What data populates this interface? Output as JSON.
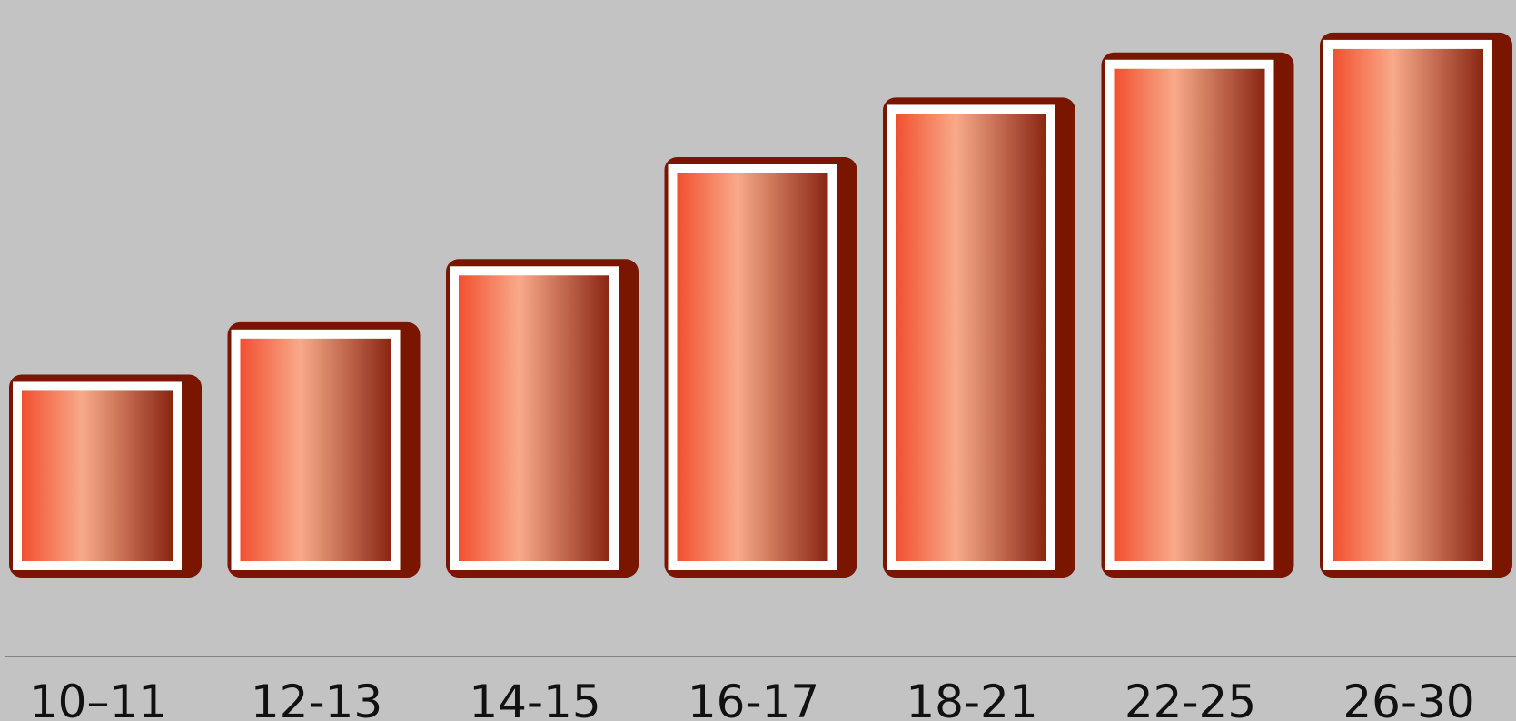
{
  "chart_data": {
    "type": "bar",
    "title": "",
    "xlabel": "",
    "ylabel": "",
    "categories": [
      "10–11",
      "12-13",
      "14-15",
      "16-17",
      "18-21",
      "22-25",
      "26-30"
    ],
    "values": [
      225,
      283,
      353,
      466,
      532,
      582,
      604
    ],
    "ylim": [
      0,
      620
    ],
    "grid": false,
    "legend": "none",
    "colors": {
      "background": "#c3c3c3",
      "bar_shadow": "#7a1500",
      "bar_frame": "#ffffff",
      "gradient_left": "#f1502f",
      "gradient_mid": "#f8aa8a",
      "gradient_right": "#8a2612",
      "axis_line": "#6e6e6e",
      "label_text": "#111111"
    }
  }
}
